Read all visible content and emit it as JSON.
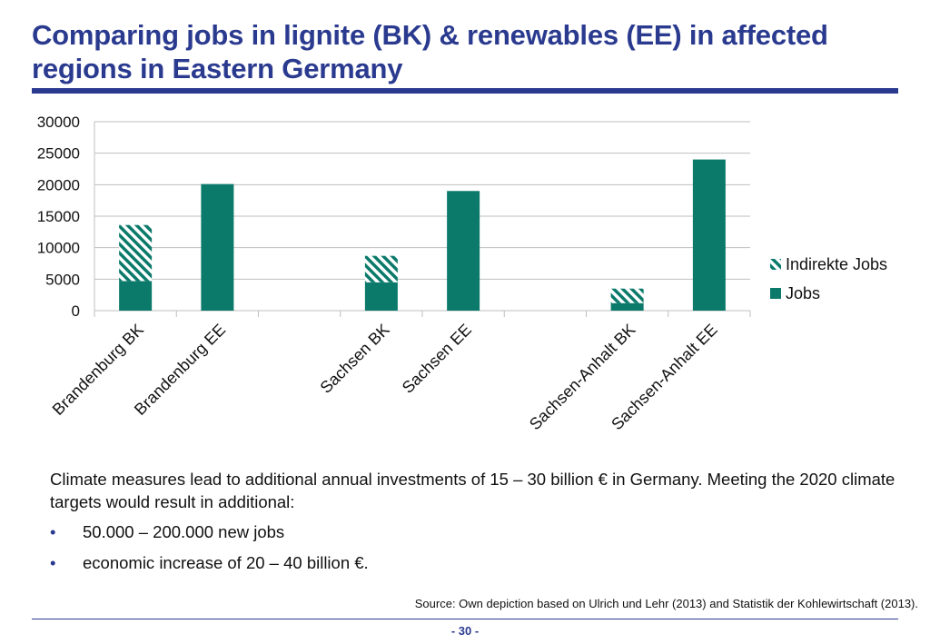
{
  "slide": {
    "title": "Comparing jobs in lignite (BK) & renewables (EE) in affected regions in Eastern Germany",
    "body_intro": "Climate measures lead to additional annual investments of 15 – 30 billion € in Germany. Meeting the 2020 climate targets would result in additional:",
    "bullets": [
      "50.000 – 200.000 new jobs",
      "economic increase of 20 – 40 billion €."
    ],
    "bullet_glyph": "•",
    "source": "Source: Own depiction based on Ulrich und Lehr (2013) and Statistik der Kohlewirtschaft (2013).",
    "page_number": "- 30 -"
  },
  "colors": {
    "title": "#2a3a8f",
    "bar": "#0b7a6b",
    "grid": "#bfbfbf",
    "axis_text": "#111111"
  },
  "chart_data": {
    "type": "bar",
    "stacked": true,
    "categories": [
      "Brandenburg BK",
      "Brandenburg EE",
      "",
      "Sachsen BK",
      "Sachsen EE",
      "",
      "Sachsen-Anhalt BK",
      "Sachsen-Anhalt EE"
    ],
    "series": [
      {
        "name": "Jobs",
        "values": [
          4700,
          20100,
          0,
          4500,
          19000,
          0,
          1200,
          24000
        ],
        "pattern": "solid"
      },
      {
        "name": "Indirekte Jobs",
        "values": [
          8900,
          0,
          0,
          4200,
          0,
          0,
          2300,
          0
        ],
        "pattern": "hatched"
      }
    ],
    "legend_order": [
      "Indirekte Jobs",
      "Jobs"
    ],
    "legend_position": "right",
    "yticks": [
      0,
      5000,
      10000,
      15000,
      20000,
      25000,
      30000
    ],
    "ylim": [
      0,
      30000
    ],
    "grid": true,
    "title": "",
    "xlabel": "",
    "ylabel": ""
  }
}
